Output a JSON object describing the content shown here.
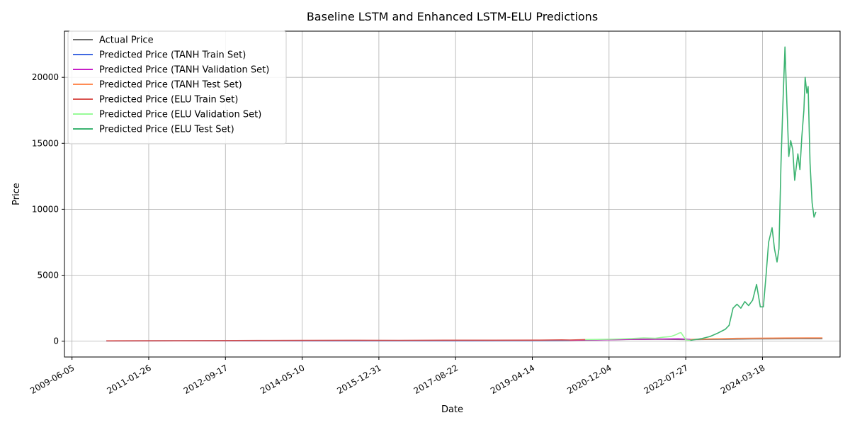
{
  "chart_data": {
    "type": "line",
    "title": "Baseline LSTM and Enhanced LSTM-ELU Predictions",
    "xlabel": "Date",
    "ylabel": "Price",
    "x_range": [
      "2009-04-07",
      "2025-11-15"
    ],
    "ylim": [
      -1200,
      23500
    ],
    "grid": true,
    "legend_position": "top-left",
    "x_ticks": [
      "2009-06-05",
      "2011-01-26",
      "2012-09-17",
      "2014-05-10",
      "2015-12-31",
      "2017-08-22",
      "2019-04-14",
      "2020-12-04",
      "2022-07-27",
      "2024-03-18"
    ],
    "y_ticks": [
      0,
      5000,
      10000,
      15000,
      20000
    ],
    "legend": [
      "Actual Price",
      "Predicted Price (TANH Train Set)",
      "Predicted Price (TANH Validation Set)",
      "Predicted Price (TANH Test Set)",
      "Predicted Price (ELU Train Set)",
      "Predicted Price (ELU Validation Set)",
      "Predicted Price (ELU Test Set)"
    ],
    "series": [
      {
        "name": "Actual Price",
        "color": "#6b6b6b",
        "points": [
          [
            "2010-03-01",
            20
          ],
          [
            "2012-01-01",
            25
          ],
          [
            "2014-01-01",
            35
          ],
          [
            "2016-01-01",
            40
          ],
          [
            "2018-01-01",
            45
          ],
          [
            "2019-06-01",
            55
          ],
          [
            "2020-06-01",
            80
          ],
          [
            "2021-06-01",
            130
          ],
          [
            "2022-01-01",
            150
          ],
          [
            "2022-09-01",
            120
          ],
          [
            "2023-06-01",
            150
          ],
          [
            "2024-01-01",
            170
          ],
          [
            "2024-06-01",
            180
          ],
          [
            "2025-01-01",
            190
          ],
          [
            "2025-06-30",
            190
          ]
        ]
      },
      {
        "name": "Predicted Price (TANH Train Set)",
        "color": "#4169e1",
        "points": [
          [
            "2010-03-01",
            18
          ],
          [
            "2012-01-01",
            22
          ],
          [
            "2014-01-01",
            30
          ],
          [
            "2016-01-01",
            35
          ],
          [
            "2018-01-01",
            40
          ],
          [
            "2019-06-01",
            50
          ],
          [
            "2020-02-01",
            60
          ]
        ]
      },
      {
        "name": "Predicted Price (TANH Validation Set)",
        "color": "#c71fc7",
        "points": [
          [
            "2020-02-01",
            60
          ],
          [
            "2020-06-01",
            90
          ],
          [
            "2021-01-01",
            110
          ],
          [
            "2021-06-01",
            140
          ],
          [
            "2022-01-01",
            160
          ],
          [
            "2022-06-01",
            180
          ],
          [
            "2022-09-01",
            130
          ]
        ]
      },
      {
        "name": "Predicted Price (TANH Test Set)",
        "color": "#ff8c55",
        "points": [
          [
            "2022-09-01",
            130
          ],
          [
            "2023-03-01",
            180
          ],
          [
            "2023-09-01",
            210
          ],
          [
            "2024-03-01",
            230
          ],
          [
            "2024-09-01",
            240
          ],
          [
            "2025-03-01",
            250
          ],
          [
            "2025-06-30",
            250
          ]
        ]
      },
      {
        "name": "Predicted Price (ELU Train Set)",
        "color": "#d9534f",
        "points": [
          [
            "2010-03-01",
            25
          ],
          [
            "2011-06-01",
            30
          ],
          [
            "2012-06-01",
            40
          ],
          [
            "2013-06-01",
            50
          ],
          [
            "2014-06-01",
            55
          ],
          [
            "2015-06-01",
            65
          ],
          [
            "2016-06-01",
            60
          ],
          [
            "2017-06-01",
            70
          ],
          [
            "2018-06-01",
            75
          ],
          [
            "2019-06-01",
            80
          ],
          [
            "2019-12-01",
            100
          ],
          [
            "2020-02-01",
            90
          ],
          [
            "2020-06-01",
            120
          ]
        ]
      },
      {
        "name": "Predicted Price (ELU Validation Set)",
        "color": "#98fb98",
        "points": [
          [
            "2020-06-01",
            120
          ],
          [
            "2020-12-01",
            150
          ],
          [
            "2021-03-01",
            170
          ],
          [
            "2021-06-01",
            200
          ],
          [
            "2021-09-01",
            250
          ],
          [
            "2021-12-01",
            220
          ],
          [
            "2022-02-01",
            300
          ],
          [
            "2022-04-01",
            350
          ],
          [
            "2022-05-15",
            500
          ],
          [
            "2022-06-01",
            600
          ],
          [
            "2022-06-20",
            650
          ],
          [
            "2022-07-10",
            350
          ],
          [
            "2022-07-27",
            100
          ],
          [
            "2022-09-01",
            60
          ]
        ]
      },
      {
        "name": "Predicted Price (ELU Test Set)",
        "color": "#3cb371",
        "points": [
          [
            "2022-09-01",
            60
          ],
          [
            "2022-12-01",
            200
          ],
          [
            "2023-02-01",
            350
          ],
          [
            "2023-04-01",
            600
          ],
          [
            "2023-06-01",
            900
          ],
          [
            "2023-07-01",
            1200
          ],
          [
            "2023-08-01",
            2500
          ],
          [
            "2023-09-01",
            2800
          ],
          [
            "2023-10-01",
            2500
          ],
          [
            "2023-11-01",
            3000
          ],
          [
            "2023-12-01",
            2700
          ],
          [
            "2024-01-01",
            3100
          ],
          [
            "2024-02-01",
            4300
          ],
          [
            "2024-03-01",
            2600
          ],
          [
            "2024-03-25",
            2600
          ],
          [
            "2024-04-15",
            5000
          ],
          [
            "2024-05-05",
            7500
          ],
          [
            "2024-06-01",
            8600
          ],
          [
            "2024-06-20",
            7000
          ],
          [
            "2024-07-10",
            6000
          ],
          [
            "2024-07-25",
            7000
          ],
          [
            "2024-08-10",
            13500
          ],
          [
            "2024-08-25",
            18000
          ],
          [
            "2024-09-10",
            22300
          ],
          [
            "2024-09-25",
            18000
          ],
          [
            "2024-10-10",
            14000
          ],
          [
            "2024-10-25",
            15200
          ],
          [
            "2024-11-10",
            14500
          ],
          [
            "2024-11-25",
            12200
          ],
          [
            "2024-12-05",
            13000
          ],
          [
            "2024-12-20",
            14200
          ],
          [
            "2025-01-05",
            13000
          ],
          [
            "2025-01-20",
            15500
          ],
          [
            "2025-02-05",
            17500
          ],
          [
            "2025-02-15",
            20000
          ],
          [
            "2025-02-28",
            18800
          ],
          [
            "2025-03-10",
            19300
          ],
          [
            "2025-03-25",
            13500
          ],
          [
            "2025-04-10",
            10500
          ],
          [
            "2025-04-25",
            9400
          ],
          [
            "2025-05-10",
            9800
          ]
        ]
      }
    ]
  }
}
